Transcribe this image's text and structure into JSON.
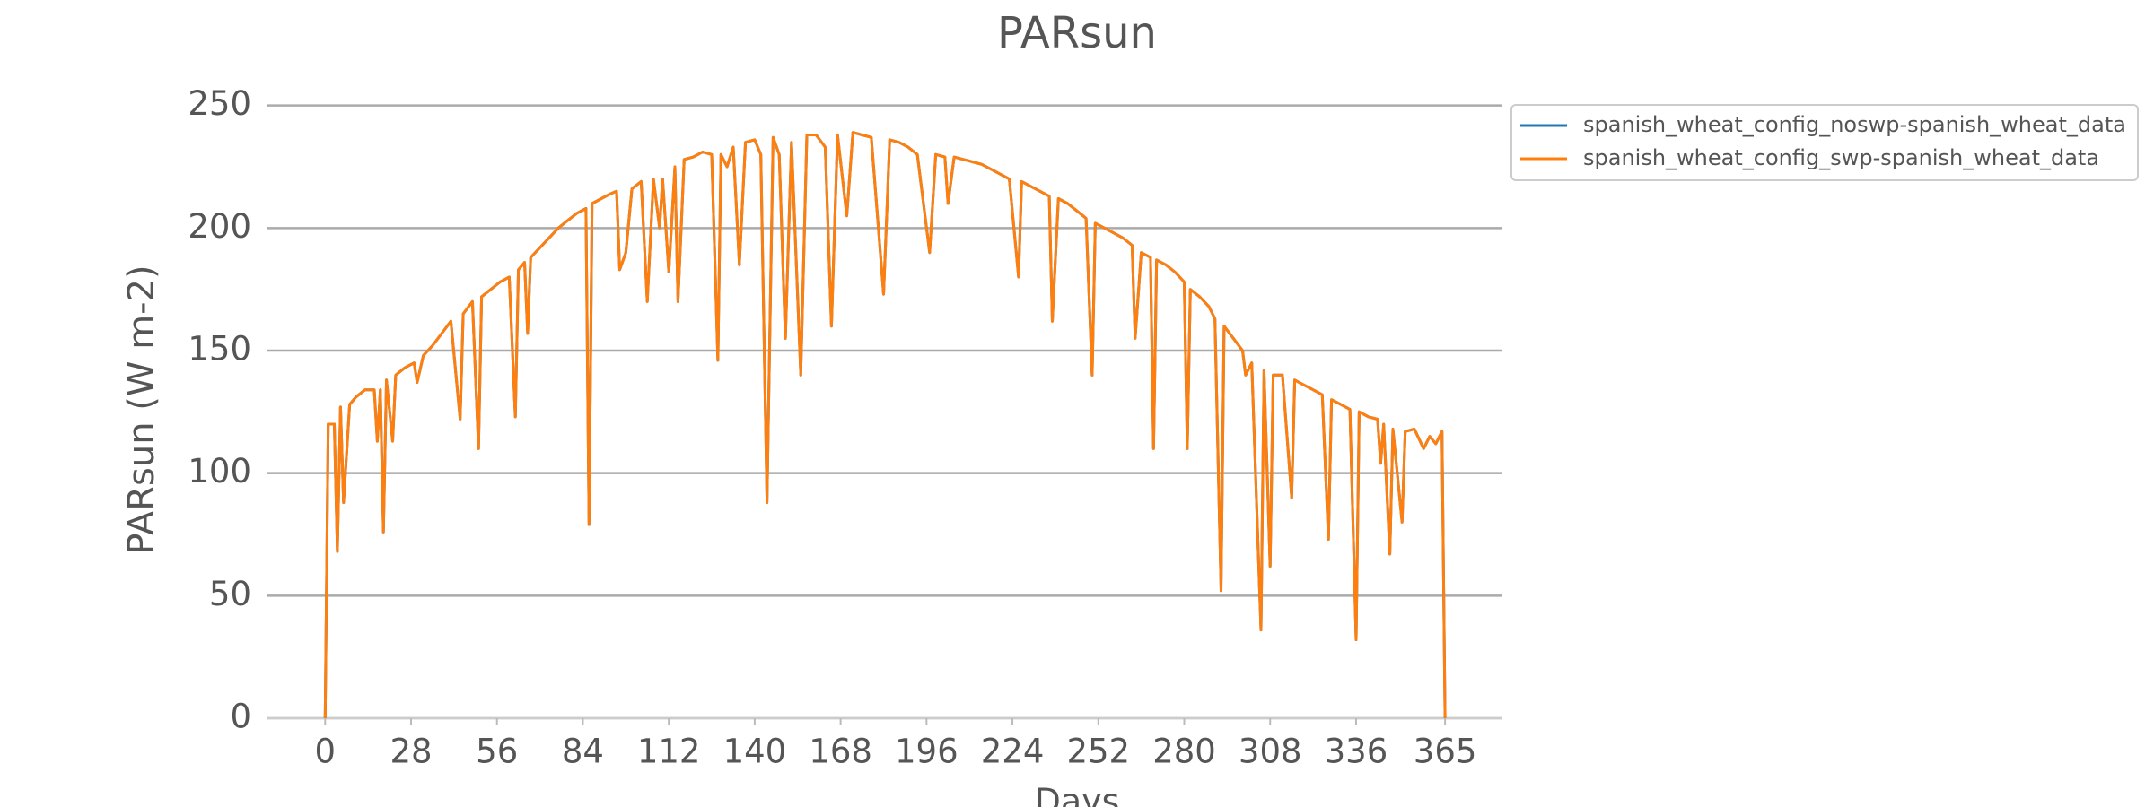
{
  "chart_data": {
    "type": "line",
    "title": "PARsun",
    "x_label": "Days",
    "y_label": "PARsun (W m-2)",
    "x": [
      0,
      1,
      3,
      4,
      5,
      6,
      8,
      10,
      13,
      16,
      17,
      18,
      19,
      20,
      22,
      23,
      26,
      29,
      30,
      32,
      35,
      38,
      41,
      44,
      45,
      48,
      50,
      51,
      54,
      57,
      60,
      62,
      63,
      65,
      66,
      67,
      70,
      73,
      76,
      79,
      82,
      85,
      86,
      87,
      90,
      93,
      95,
      96,
      98,
      100,
      103,
      105,
      107,
      109,
      110,
      112,
      114,
      115,
      117,
      120,
      123,
      126,
      128,
      129,
      131,
      133,
      135,
      137,
      140,
      142,
      144,
      146,
      148,
      150,
      152,
      155,
      157,
      160,
      163,
      165,
      167,
      170,
      172,
      175,
      178,
      182,
      184,
      187,
      190,
      193,
      197,
      199,
      202,
      203,
      205,
      208,
      211,
      214,
      217,
      220,
      223,
      226,
      227,
      230,
      233,
      236,
      237,
      239,
      242,
      245,
      248,
      250,
      251,
      254,
      257,
      260,
      263,
      264,
      266,
      269,
      270,
      271,
      274,
      277,
      280,
      281,
      282,
      285,
      288,
      290,
      292,
      293,
      296,
      299,
      300,
      302,
      305,
      306,
      308,
      309,
      312,
      315,
      316,
      319,
      322,
      325,
      327,
      328,
      331,
      334,
      336,
      337,
      340,
      343,
      344,
      345,
      347,
      348,
      351,
      352,
      355,
      358,
      360,
      362,
      364,
      365
    ],
    "series": [
      {
        "name": "spanish_wheat_config_noswp-spanish_wheat_data",
        "color": "#1f77b4",
        "values": [
          0,
          120,
          120,
          68,
          127,
          88,
          128,
          131,
          134,
          134,
          113,
          134,
          76,
          138,
          113,
          140,
          143,
          145,
          137,
          148,
          152,
          157,
          162,
          122,
          165,
          170,
          110,
          172,
          175,
          178,
          180,
          123,
          183,
          186,
          157,
          188,
          192,
          196,
          200,
          203,
          206,
          208,
          79,
          210,
          212,
          214,
          215,
          183,
          190,
          216,
          219,
          170,
          220,
          200,
          220,
          182,
          225,
          170,
          228,
          229,
          231,
          230,
          146,
          230,
          225,
          233,
          185,
          235,
          236,
          230,
          88,
          237,
          230,
          155,
          235,
          140,
          238,
          238,
          233,
          160,
          238,
          205,
          239,
          238,
          237,
          173,
          236,
          235,
          233,
          230,
          190,
          230,
          229,
          210,
          229,
          228,
          227,
          226,
          224,
          222,
          220,
          180,
          219,
          217,
          215,
          213,
          162,
          212,
          210,
          207,
          204,
          140,
          202,
          200,
          198,
          196,
          193,
          155,
          190,
          188,
          110,
          187,
          185,
          182,
          178,
          110,
          175,
          172,
          168,
          163,
          52,
          160,
          155,
          150,
          140,
          145,
          36,
          142,
          62,
          140,
          140,
          90,
          138,
          136,
          134,
          132,
          73,
          130,
          128,
          126,
          32,
          125,
          123,
          122,
          104,
          120,
          67,
          118,
          80,
          117,
          118,
          110,
          115,
          112,
          117,
          0
        ]
      },
      {
        "name": "spanish_wheat_config_swp-spanish_wheat_data",
        "color": "#ff7f0e",
        "values": [
          0,
          120,
          120,
          68,
          127,
          88,
          128,
          131,
          134,
          134,
          113,
          134,
          76,
          138,
          113,
          140,
          143,
          145,
          137,
          148,
          152,
          157,
          162,
          122,
          165,
          170,
          110,
          172,
          175,
          178,
          180,
          123,
          183,
          186,
          157,
          188,
          192,
          196,
          200,
          203,
          206,
          208,
          79,
          210,
          212,
          214,
          215,
          183,
          190,
          216,
          219,
          170,
          220,
          200,
          220,
          182,
          225,
          170,
          228,
          229,
          231,
          230,
          146,
          230,
          225,
          233,
          185,
          235,
          236,
          230,
          88,
          237,
          230,
          155,
          235,
          140,
          238,
          238,
          233,
          160,
          238,
          205,
          239,
          238,
          237,
          173,
          236,
          235,
          233,
          230,
          190,
          230,
          229,
          210,
          229,
          228,
          227,
          226,
          224,
          222,
          220,
          180,
          219,
          217,
          215,
          213,
          162,
          212,
          210,
          207,
          204,
          140,
          202,
          200,
          198,
          196,
          193,
          155,
          190,
          188,
          110,
          187,
          185,
          182,
          178,
          110,
          175,
          172,
          168,
          163,
          52,
          160,
          155,
          150,
          140,
          145,
          36,
          142,
          62,
          140,
          140,
          90,
          138,
          136,
          134,
          132,
          73,
          130,
          128,
          126,
          32,
          125,
          123,
          122,
          104,
          120,
          67,
          118,
          80,
          117,
          118,
          110,
          115,
          112,
          117,
          0
        ]
      }
    ],
    "xlim": [
      -18.8,
      383.4
    ],
    "xticks": [
      0,
      28,
      56,
      84,
      112,
      140,
      168,
      196,
      224,
      252,
      280,
      308,
      336,
      365
    ],
    "ylim": [
      0,
      255
    ],
    "yticks": [
      0,
      50,
      100,
      150,
      200,
      250
    ],
    "grid": true
  }
}
